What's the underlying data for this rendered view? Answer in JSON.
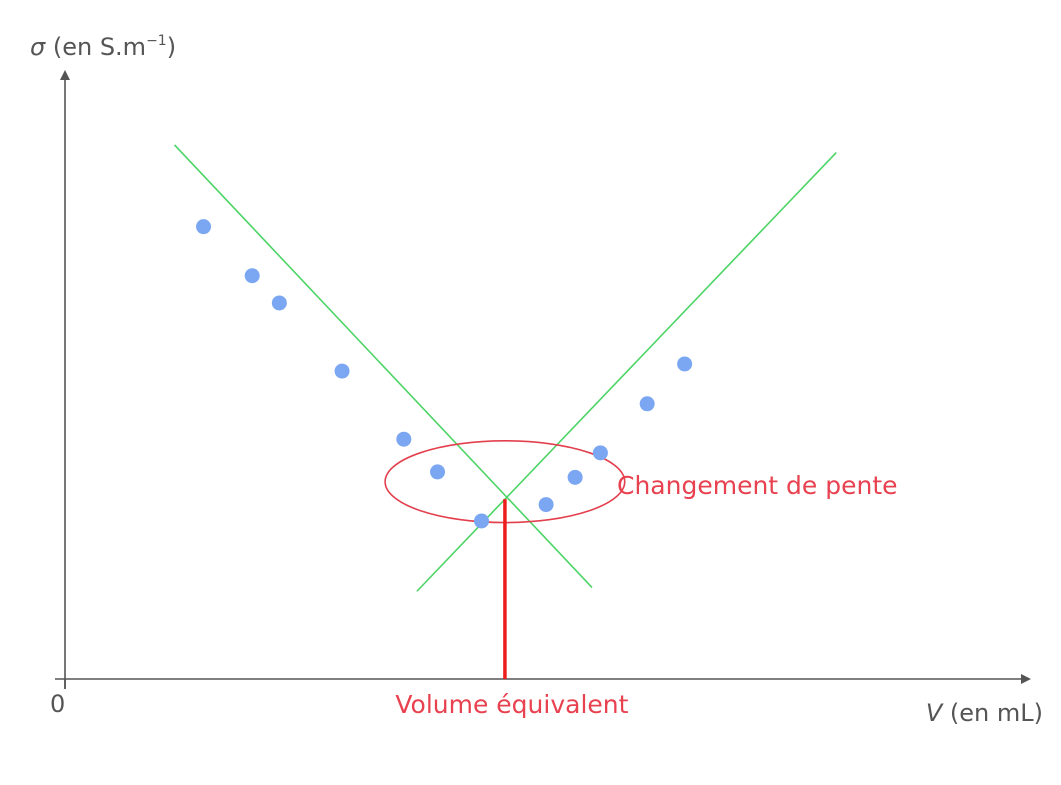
{
  "chart_data": {
    "type": "scatter",
    "title": "",
    "ylabel": {
      "symbol": "σ",
      "text": " (en S.m",
      "superscript": "−1",
      "suffix": ")"
    },
    "xlabel": {
      "symbol": "V",
      "text": " (en mL)"
    },
    "origin_label": "0",
    "xlim": [
      0,
      100
    ],
    "ylim": [
      0,
      100
    ],
    "grid": false,
    "series": [
      {
        "values": [
          {
            "x": 14.8,
            "y": 83.0
          },
          {
            "x": 20.0,
            "y": 74.0
          },
          {
            "x": 22.9,
            "y": 69.0
          },
          {
            "x": 29.6,
            "y": 56.5
          },
          {
            "x": 36.2,
            "y": 44.0
          },
          {
            "x": 39.8,
            "y": 38.0
          },
          {
            "x": 44.5,
            "y": 29.0
          },
          {
            "x": 51.4,
            "y": 32.0
          },
          {
            "x": 54.5,
            "y": 37.0
          },
          {
            "x": 57.2,
            "y": 41.5
          },
          {
            "x": 62.2,
            "y": 50.5
          },
          {
            "x": 66.2,
            "y": 57.8
          }
        ],
        "color": "#7ba7f2"
      }
    ],
    "fit_lines": [
      {
        "from": {
          "x": 11.7,
          "y": 98.0
        },
        "to": {
          "x": 56.3,
          "y": 16.8
        },
        "color": "#4cd465"
      },
      {
        "from": {
          "x": 37.6,
          "y": 16.1
        },
        "to": {
          "x": 82.4,
          "y": 96.6
        },
        "color": "#4cd465"
      }
    ],
    "equivalence": {
      "x": 47.0,
      "y": 33.0,
      "label": "Volume équivalent",
      "color": "#ee1d1d"
    },
    "highlight": {
      "center": {
        "x": 47.0,
        "y": 36.2
      },
      "radius_x": 12.8,
      "radius_y": 7.5,
      "label": "Changement de pente",
      "color": "#e3404e"
    },
    "colors": {
      "axis": "#555555",
      "point": "#7ba7f2",
      "fit": "#4cd465",
      "equivalence": "#ee1d1d",
      "highlight": "#e3404e"
    }
  }
}
